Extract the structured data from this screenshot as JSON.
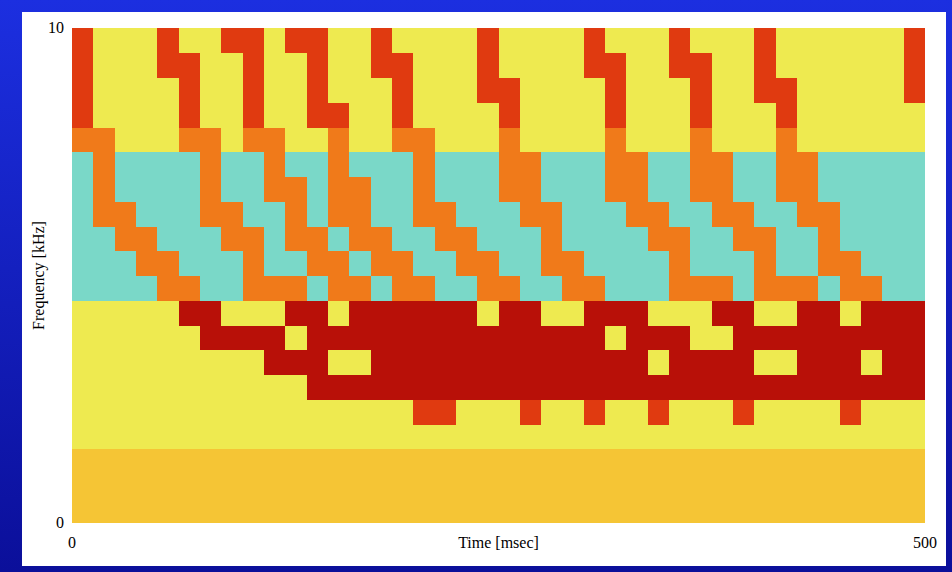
{
  "chart_data": {
    "type": "heatmap",
    "x_label": "Time [msec]",
    "y_label": "Frequency [kHz]",
    "xlim": [
      0,
      500
    ],
    "ylim": [
      0,
      10
    ],
    "xticks": [
      0,
      500
    ],
    "yticks": [
      0,
      10
    ],
    "zlim": [
      0,
      9
    ],
    "x_edges": [
      0,
      12.5,
      25,
      37.5,
      50,
      62.5,
      75,
      87.5,
      100,
      112.5,
      125,
      137.5,
      150,
      162.5,
      175,
      187.5,
      200,
      212.5,
      225,
      237.5,
      250,
      262.5,
      275,
      287.5,
      300,
      312.5,
      325,
      337.5,
      350,
      362.5,
      375,
      387.5,
      400,
      412.5,
      425,
      437.5,
      450,
      462.5,
      475,
      487.5,
      500
    ],
    "y_edges": [
      0,
      0.5,
      1,
      1.5,
      2,
      2.5,
      3,
      3.5,
      4,
      4.5,
      5,
      5.5,
      6,
      6.5,
      7,
      7.5,
      8,
      8.5,
      9,
      9.5,
      10
    ],
    "cells": [
      [
        5,
        5,
        5,
        5,
        5,
        5,
        5,
        5,
        5,
        5,
        5,
        5,
        5,
        5,
        5,
        5,
        5,
        5,
        5,
        5,
        5,
        5,
        5,
        5,
        5,
        5,
        5,
        5,
        5,
        5,
        5,
        5,
        5,
        5,
        5,
        5,
        5,
        5,
        5,
        5
      ],
      [
        5,
        5,
        5,
        5,
        5,
        5,
        5,
        5,
        5,
        5,
        5,
        5,
        5,
        5,
        5,
        5,
        5,
        5,
        5,
        5,
        5,
        5,
        5,
        5,
        5,
        5,
        5,
        5,
        5,
        5,
        5,
        5,
        5,
        5,
        5,
        5,
        5,
        5,
        5,
        5
      ],
      [
        5,
        5,
        5,
        5,
        5,
        5,
        5,
        5,
        5,
        5,
        5,
        5,
        5,
        5,
        5,
        5,
        5,
        5,
        5,
        5,
        5,
        5,
        5,
        5,
        5,
        5,
        5,
        5,
        5,
        5,
        5,
        5,
        5,
        5,
        5,
        5,
        5,
        5,
        5,
        5
      ],
      [
        4,
        4,
        4,
        4,
        4,
        4,
        4,
        4,
        4,
        4,
        4,
        4,
        4,
        4,
        4,
        4,
        4,
        4,
        4,
        4,
        4,
        4,
        4,
        4,
        4,
        4,
        4,
        4,
        4,
        4,
        4,
        4,
        4,
        4,
        4,
        4,
        4,
        4,
        4,
        4
      ],
      [
        4,
        4,
        4,
        4,
        4,
        4,
        4,
        4,
        4,
        4,
        4,
        4,
        4,
        4,
        4,
        4,
        8,
        8,
        4,
        4,
        4,
        8,
        4,
        4,
        8,
        4,
        4,
        8,
        4,
        4,
        4,
        8,
        4,
        4,
        4,
        4,
        8,
        4,
        4,
        4
      ],
      [
        4,
        4,
        4,
        4,
        4,
        4,
        4,
        4,
        4,
        4,
        4,
        9,
        9,
        9,
        9,
        9,
        9,
        9,
        9,
        9,
        9,
        9,
        9,
        9,
        9,
        9,
        9,
        9,
        9,
        9,
        9,
        9,
        9,
        9,
        9,
        9,
        9,
        9,
        9,
        9
      ],
      [
        4,
        4,
        4,
        4,
        4,
        4,
        4,
        4,
        4,
        9,
        9,
        9,
        4,
        4,
        9,
        9,
        9,
        9,
        9,
        9,
        9,
        9,
        9,
        9,
        9,
        9,
        9,
        4,
        9,
        9,
        9,
        9,
        4,
        4,
        9,
        9,
        9,
        4,
        9,
        9
      ],
      [
        4,
        4,
        4,
        4,
        4,
        4,
        9,
        9,
        9,
        9,
        4,
        9,
        9,
        9,
        9,
        9,
        9,
        9,
        9,
        9,
        9,
        9,
        9,
        9,
        9,
        4,
        9,
        9,
        9,
        4,
        4,
        9,
        9,
        9,
        9,
        9,
        9,
        9,
        9,
        9
      ],
      [
        4,
        4,
        4,
        4,
        4,
        9,
        9,
        4,
        4,
        4,
        9,
        9,
        4,
        9,
        9,
        9,
        9,
        9,
        9,
        4,
        9,
        9,
        4,
        4,
        9,
        9,
        9,
        4,
        4,
        4,
        9,
        9,
        4,
        4,
        9,
        9,
        4,
        9,
        9,
        9
      ],
      [
        3,
        3,
        3,
        3,
        7,
        7,
        3,
        3,
        7,
        7,
        7,
        3,
        7,
        7,
        3,
        7,
        7,
        3,
        3,
        7,
        7,
        3,
        3,
        7,
        7,
        3,
        3,
        3,
        7,
        7,
        7,
        3,
        7,
        7,
        7,
        3,
        7,
        7,
        3,
        3
      ],
      [
        3,
        3,
        3,
        7,
        7,
        3,
        3,
        3,
        7,
        3,
        3,
        7,
        7,
        3,
        7,
        7,
        3,
        3,
        7,
        7,
        3,
        3,
        7,
        7,
        3,
        3,
        3,
        3,
        7,
        3,
        3,
        3,
        7,
        3,
        3,
        7,
        7,
        3,
        3,
        3
      ],
      [
        3,
        3,
        7,
        7,
        3,
        3,
        3,
        7,
        7,
        3,
        7,
        7,
        3,
        7,
        7,
        3,
        3,
        7,
        7,
        3,
        3,
        3,
        7,
        3,
        3,
        3,
        3,
        7,
        7,
        3,
        3,
        7,
        7,
        3,
        3,
        7,
        3,
        3,
        3,
        3
      ],
      [
        3,
        7,
        7,
        3,
        3,
        3,
        7,
        7,
        3,
        3,
        7,
        3,
        7,
        7,
        3,
        3,
        7,
        7,
        3,
        3,
        3,
        7,
        7,
        3,
        3,
        3,
        7,
        7,
        3,
        3,
        7,
        7,
        3,
        3,
        7,
        7,
        3,
        3,
        3,
        3
      ],
      [
        3,
        7,
        3,
        3,
        3,
        3,
        7,
        3,
        3,
        7,
        7,
        3,
        7,
        7,
        3,
        3,
        7,
        3,
        3,
        3,
        7,
        7,
        3,
        3,
        3,
        7,
        7,
        3,
        3,
        7,
        7,
        3,
        3,
        7,
        7,
        3,
        3,
        3,
        3,
        3
      ],
      [
        3,
        7,
        3,
        3,
        3,
        3,
        7,
        3,
        3,
        7,
        3,
        3,
        7,
        3,
        3,
        3,
        7,
        3,
        3,
        3,
        7,
        7,
        3,
        3,
        3,
        7,
        7,
        3,
        3,
        7,
        7,
        3,
        3,
        7,
        7,
        3,
        3,
        3,
        3,
        3
      ],
      [
        7,
        7,
        4,
        4,
        4,
        7,
        7,
        4,
        7,
        7,
        4,
        4,
        7,
        4,
        4,
        7,
        7,
        4,
        4,
        4,
        7,
        4,
        4,
        4,
        4,
        7,
        4,
        4,
        4,
        7,
        4,
        4,
        4,
        7,
        4,
        4,
        4,
        4,
        4,
        4
      ],
      [
        8,
        4,
        4,
        4,
        4,
        8,
        4,
        4,
        8,
        4,
        4,
        8,
        8,
        4,
        4,
        8,
        4,
        4,
        4,
        4,
        8,
        4,
        4,
        4,
        4,
        8,
        4,
        4,
        4,
        8,
        4,
        4,
        4,
        8,
        4,
        4,
        4,
        4,
        4,
        4
      ],
      [
        8,
        4,
        4,
        4,
        4,
        8,
        4,
        4,
        8,
        4,
        4,
        8,
        4,
        4,
        4,
        8,
        4,
        4,
        4,
        8,
        8,
        4,
        4,
        4,
        4,
        8,
        4,
        4,
        4,
        8,
        4,
        4,
        8,
        8,
        4,
        4,
        4,
        4,
        4,
        8
      ],
      [
        8,
        4,
        4,
        4,
        8,
        8,
        4,
        4,
        8,
        4,
        4,
        8,
        4,
        4,
        8,
        8,
        4,
        4,
        4,
        8,
        4,
        4,
        4,
        4,
        8,
        8,
        4,
        4,
        8,
        8,
        4,
        4,
        8,
        4,
        4,
        4,
        4,
        4,
        4,
        8
      ],
      [
        8,
        4,
        4,
        4,
        8,
        4,
        4,
        8,
        8,
        4,
        8,
        8,
        4,
        4,
        8,
        4,
        4,
        4,
        4,
        8,
        4,
        4,
        4,
        4,
        8,
        4,
        4,
        4,
        8,
        4,
        4,
        4,
        8,
        4,
        4,
        4,
        4,
        4,
        4,
        8
      ]
    ]
  }
}
